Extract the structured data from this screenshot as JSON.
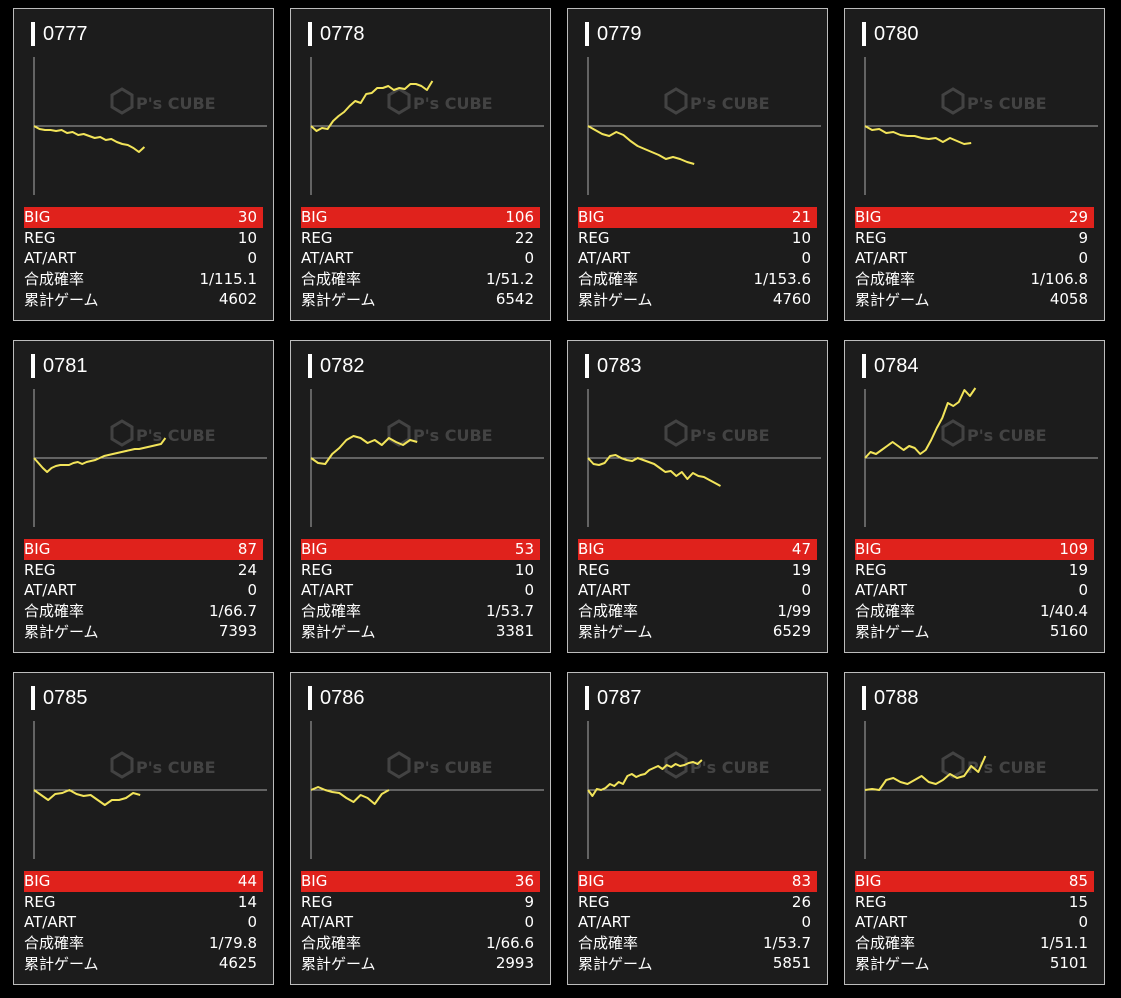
{
  "row_labels": {
    "big": "BIG",
    "reg": "REG",
    "at": "AT/ART",
    "prob": "合成確率",
    "games": "累計ゲーム"
  },
  "watermark": {
    "text": "P's CUBE",
    "icon": "cube-logo-icon"
  },
  "colors": {
    "big_bar": "#e0221c",
    "line": "#f2e45a",
    "baseline": "#aaaaaa",
    "card_bg": "#1c1c1c"
  },
  "chart_data": [
    {
      "type": "line",
      "title": "0777",
      "x": [
        0,
        1,
        2,
        3,
        4,
        5,
        6,
        7,
        8,
        9,
        10,
        11,
        12,
        13,
        14,
        15,
        16,
        17,
        18,
        19,
        20
      ],
      "values": [
        0,
        -3,
        -4,
        -4,
        -5,
        -4,
        -7,
        -6,
        -9,
        -8,
        -10,
        -12,
        -11,
        -14,
        -13,
        -16,
        -18,
        -19,
        -22,
        -26,
        -21
      ]
    },
    {
      "type": "line",
      "title": "0778",
      "x": [
        0,
        1,
        2,
        3,
        4,
        5,
        6,
        7,
        8,
        9,
        10,
        11,
        12,
        13,
        14,
        15,
        16,
        17,
        18,
        19,
        20,
        21,
        22
      ],
      "values": [
        0,
        -5,
        -2,
        -3,
        5,
        10,
        14,
        20,
        25,
        23,
        32,
        33,
        38,
        38,
        40,
        36,
        38,
        37,
        42,
        42,
        40,
        36,
        45
      ]
    },
    {
      "type": "line",
      "title": "0779",
      "x": [
        0,
        1,
        2,
        3,
        4,
        5,
        6,
        7,
        8,
        9,
        10,
        11,
        12,
        13,
        14,
        15
      ],
      "values": [
        0,
        -4,
        -8,
        -10,
        -6,
        -9,
        -15,
        -20,
        -23,
        -26,
        -29,
        -33,
        -31,
        -33,
        -36,
        -38
      ]
    },
    {
      "type": "line",
      "title": "0780",
      "x": [
        0,
        1,
        2,
        3,
        4,
        5,
        6,
        7,
        8,
        9,
        10,
        11,
        12,
        13,
        14,
        15
      ],
      "values": [
        0,
        -4,
        -3,
        -7,
        -6,
        -9,
        -10,
        -10,
        -12,
        -13,
        -12,
        -16,
        -12,
        -15,
        -18,
        -17
      ]
    },
    {
      "type": "line",
      "title": "0781",
      "x": [
        0,
        1,
        2,
        3,
        4,
        5,
        6,
        7,
        8,
        9,
        10,
        11,
        12,
        13,
        14,
        15,
        16,
        17,
        18,
        19,
        20,
        21,
        22,
        23,
        24,
        25,
        26,
        27,
        28,
        29,
        30
      ],
      "values": [
        0,
        -5,
        -10,
        -14,
        -10,
        -8,
        -7,
        -7,
        -7,
        -5,
        -4,
        -6,
        -4,
        -3,
        -2,
        0,
        2,
        3,
        4,
        5,
        6,
        7,
        8,
        9,
        9,
        10,
        11,
        12,
        13,
        14,
        20
      ]
    },
    {
      "type": "line",
      "title": "0782",
      "x": [
        0,
        1,
        2,
        3,
        4,
        5,
        6,
        7,
        8,
        9,
        10,
        11,
        12,
        13,
        14,
        15
      ],
      "values": [
        0,
        -5,
        -6,
        4,
        10,
        18,
        22,
        20,
        15,
        18,
        13,
        20,
        16,
        13,
        18,
        16
      ]
    },
    {
      "type": "line",
      "title": "0783",
      "x": [
        0,
        1,
        2,
        3,
        4,
        5,
        6,
        7,
        8,
        9,
        10,
        11,
        12,
        13,
        14,
        15,
        16,
        17,
        18,
        19,
        20,
        21,
        22,
        23,
        24
      ],
      "values": [
        0,
        -6,
        -7,
        -5,
        2,
        3,
        0,
        -2,
        -3,
        0,
        -2,
        -4,
        -6,
        -10,
        -14,
        -13,
        -18,
        -14,
        -21,
        -15,
        -18,
        -19,
        -22,
        -25,
        -28
      ]
    },
    {
      "type": "line",
      "title": "0784",
      "x": [
        0,
        1,
        2,
        3,
        4,
        5,
        6,
        7,
        8,
        9,
        10,
        11,
        12,
        13,
        14,
        15,
        16,
        17,
        18,
        19,
        20
      ],
      "values": [
        0,
        6,
        4,
        8,
        12,
        16,
        12,
        8,
        12,
        10,
        4,
        8,
        18,
        30,
        40,
        55,
        52,
        56,
        68,
        62,
        70
      ]
    },
    {
      "type": "line",
      "title": "0785",
      "x": [
        0,
        1,
        2,
        3,
        4,
        5,
        6,
        7,
        8,
        9,
        10,
        11,
        12,
        13,
        14,
        15
      ],
      "values": [
        0,
        -5,
        -10,
        -4,
        -3,
        0,
        -4,
        -6,
        -5,
        -10,
        -15,
        -10,
        -10,
        -8,
        -3,
        -5
      ]
    },
    {
      "type": "line",
      "title": "0786",
      "x": [
        0,
        1,
        2,
        3,
        4,
        5,
        6,
        7,
        8,
        9,
        10,
        11
      ],
      "values": [
        0,
        3,
        0,
        -2,
        -3,
        -8,
        -12,
        -5,
        -8,
        -14,
        -4,
        0
      ]
    },
    {
      "type": "line",
      "title": "0787",
      "x": [
        0,
        1,
        2,
        3,
        4,
        5,
        6,
        7,
        8,
        9,
        10,
        11,
        12,
        13,
        14,
        15,
        16,
        17,
        18,
        19,
        20,
        21,
        22,
        23,
        24,
        25,
        26
      ],
      "values": [
        0,
        -6,
        1,
        0,
        2,
        6,
        4,
        8,
        6,
        14,
        16,
        13,
        15,
        16,
        20,
        22,
        24,
        21,
        25,
        23,
        26,
        24,
        25,
        27,
        28,
        26,
        30
      ]
    },
    {
      "type": "line",
      "title": "0788",
      "x": [
        0,
        1,
        2,
        3,
        4,
        5,
        6,
        7,
        8,
        9,
        10,
        11,
        12,
        13,
        14,
        15,
        16,
        17
      ],
      "values": [
        0,
        1,
        0,
        10,
        12,
        8,
        6,
        10,
        14,
        8,
        6,
        10,
        16,
        12,
        14,
        24,
        18,
        34
      ]
    }
  ],
  "machines": [
    {
      "id": "0777",
      "big": "30",
      "reg": "10",
      "at": "0",
      "prob": "1/115.1",
      "games": "4602"
    },
    {
      "id": "0778",
      "big": "106",
      "reg": "22",
      "at": "0",
      "prob": "1/51.2",
      "games": "6542"
    },
    {
      "id": "0779",
      "big": "21",
      "reg": "10",
      "at": "0",
      "prob": "1/153.6",
      "games": "4760"
    },
    {
      "id": "0780",
      "big": "29",
      "reg": "9",
      "at": "0",
      "prob": "1/106.8",
      "games": "4058"
    },
    {
      "id": "0781",
      "big": "87",
      "reg": "24",
      "at": "0",
      "prob": "1/66.7",
      "games": "7393"
    },
    {
      "id": "0782",
      "big": "53",
      "reg": "10",
      "at": "0",
      "prob": "1/53.7",
      "games": "3381"
    },
    {
      "id": "0783",
      "big": "47",
      "reg": "19",
      "at": "0",
      "prob": "1/99",
      "games": "6529"
    },
    {
      "id": "0784",
      "big": "109",
      "reg": "19",
      "at": "0",
      "prob": "1/40.4",
      "games": "5160"
    },
    {
      "id": "0785",
      "big": "44",
      "reg": "14",
      "at": "0",
      "prob": "1/79.8",
      "games": "4625"
    },
    {
      "id": "0786",
      "big": "36",
      "reg": "9",
      "at": "0",
      "prob": "1/66.6",
      "games": "2993"
    },
    {
      "id": "0787",
      "big": "83",
      "reg": "26",
      "at": "0",
      "prob": "1/53.7",
      "games": "5851"
    },
    {
      "id": "0788",
      "big": "85",
      "reg": "15",
      "at": "0",
      "prob": "1/51.1",
      "games": "5101"
    }
  ]
}
